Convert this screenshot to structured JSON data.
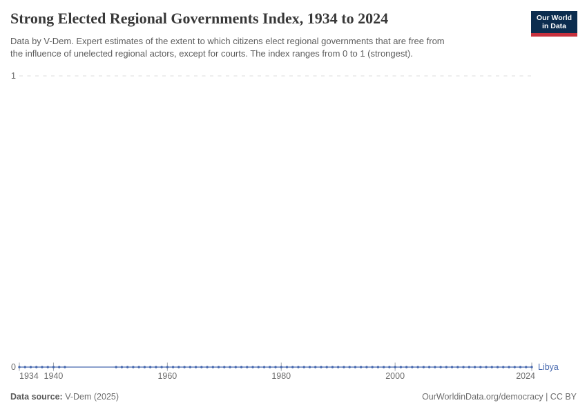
{
  "header": {
    "title": "Strong Elected Regional Governments Index, 1934 to 2024",
    "subtitle_line1": "Data by V-Dem. Expert estimates of the extent to which citizens elect regional governments that are free from",
    "subtitle_line2": "the influence of unelected regional actors, except for courts. The index ranges from 0 to 1 (strongest).",
    "logo": {
      "line1": "Our World",
      "line2": "in Data",
      "bg_color": "#0c2d4f",
      "accent_color": "#c7313d"
    }
  },
  "chart_data": {
    "type": "line",
    "title": "Strong Elected Regional Governments Index, 1934 to 2024",
    "xlabel": "",
    "ylabel": "",
    "xlim": [
      1934,
      2024
    ],
    "ylim": [
      0,
      1
    ],
    "x_ticks": [
      1934,
      1940,
      1960,
      1980,
      2000,
      2024
    ],
    "y_ticks": [
      0,
      1
    ],
    "grid": "dashed horizontal gridlines at y ticks",
    "legend_position": "end-of-line entity label",
    "series": [
      {
        "name": "Libya",
        "color": "#4567ae",
        "note": "flat line at value 0 for all observed years; no data 1943-1950, line connects across gap without markers",
        "segments": [
          {
            "start_year": 1934,
            "end_year": 1942,
            "value": 0
          },
          {
            "start_year": 1951,
            "end_year": 2024,
            "value": 0
          }
        ],
        "connect_gap": true
      }
    ],
    "colors": {
      "grid": "#dddddd",
      "tick": "#9da3ab",
      "axis_text": "#6b6b6b"
    }
  },
  "footer": {
    "source_label": "Data source:",
    "source_value": " V-Dem (2025)",
    "credit": "OurWorldinData.org/democracy | CC BY"
  }
}
